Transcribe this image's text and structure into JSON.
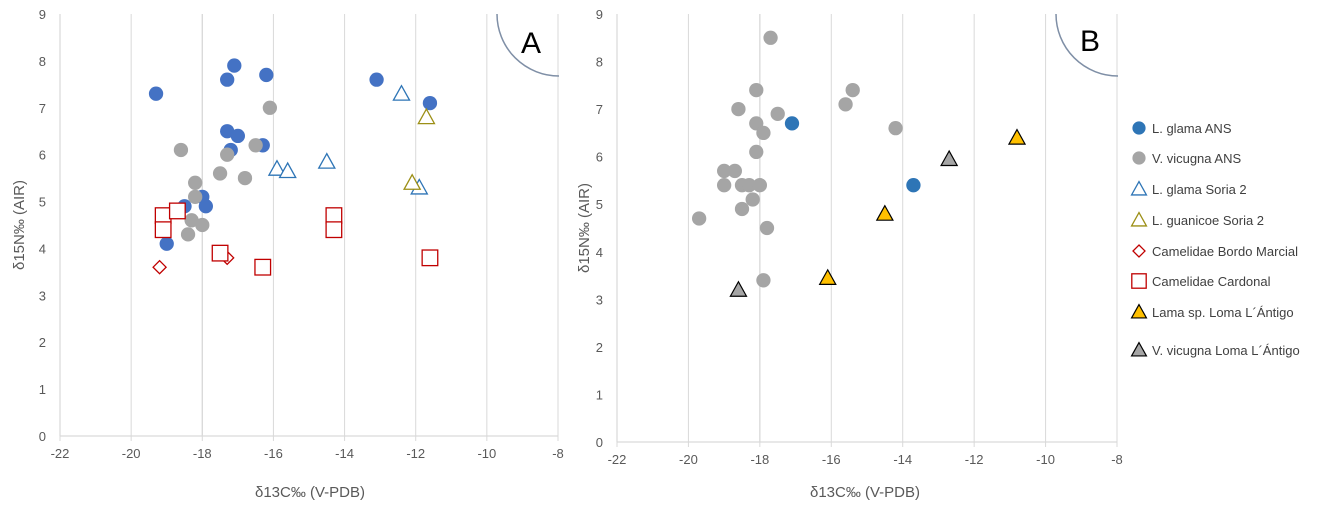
{
  "colors": {
    "ans_glama": "#4472C4",
    "vicugna": "#A5A5A5",
    "soria_glama": "#2E75B6",
    "soria_guanicoe": "#9C8F16",
    "bordo": "#C00000",
    "cardonal": "#C00000",
    "loma_lama": "#FFC000",
    "loma_vicugna": "#A5A5A5",
    "axis": "#D9D9D9",
    "tick": "#595959"
  },
  "chart_data": [
    {
      "panel": "A",
      "type": "scatter",
      "xlabel": "δ13C‰ (V-PDB)",
      "ylabel": "δ15N‰ (AIR)",
      "xlim": [
        -22,
        -8
      ],
      "ylim": [
        0,
        9
      ],
      "xticks": [
        -22,
        -20,
        -18,
        -16,
        -14,
        -12,
        -10,
        -8
      ],
      "xtick_labels": [
        "-22",
        "-20",
        "-18",
        "-16",
        "-14",
        "-12",
        "-10",
        "-8"
      ],
      "yticks": [
        0,
        1,
        2,
        3,
        4,
        5,
        6,
        7,
        8,
        9
      ],
      "ytick_labels": [
        "0",
        "1",
        "2",
        "3",
        "4",
        "5",
        "6",
        "7",
        "8",
        "9"
      ],
      "series": [
        {
          "name": "L. glama ANS",
          "marker": "circle-filled",
          "color": "#4472C4",
          "points": [
            [
              -19.3,
              7.3
            ],
            [
              -17.1,
              7.9
            ],
            [
              -17.3,
              7.6
            ],
            [
              -16.2,
              7.7
            ],
            [
              -13.1,
              7.6
            ],
            [
              -11.6,
              7.1
            ],
            [
              -17.3,
              6.5
            ],
            [
              -17.0,
              6.4
            ],
            [
              -16.3,
              6.2
            ],
            [
              -17.2,
              6.1
            ],
            [
              -18.0,
              5.1
            ],
            [
              -17.9,
              4.9
            ],
            [
              -18.5,
              4.9
            ],
            [
              -19.0,
              4.1
            ]
          ]
        },
        {
          "name": "V. vicugna ANS",
          "marker": "circle-filled",
          "color": "#A5A5A5",
          "points": [
            [
              -16.1,
              7.0
            ],
            [
              -18.6,
              6.1
            ],
            [
              -16.5,
              6.2
            ],
            [
              -17.3,
              6.0
            ],
            [
              -17.5,
              5.6
            ],
            [
              -16.8,
              5.5
            ],
            [
              -18.2,
              5.4
            ],
            [
              -18.2,
              5.1
            ],
            [
              -18.3,
              4.6
            ],
            [
              -18.0,
              4.5
            ],
            [
              -18.4,
              4.3
            ]
          ]
        },
        {
          "name": "L. glama Soria 2",
          "marker": "triangle-open",
          "color": "#2E75B6",
          "points": [
            [
              -12.4,
              7.3
            ],
            [
              -14.5,
              5.85
            ],
            [
              -15.9,
              5.7
            ],
            [
              -15.6,
              5.65
            ],
            [
              -11.9,
              5.3
            ]
          ]
        },
        {
          "name": "L. guanicoe Soria 2",
          "marker": "triangle-open",
          "color": "#9C8F16",
          "points": [
            [
              -11.7,
              6.8
            ],
            [
              -12.1,
              5.4
            ]
          ]
        },
        {
          "name": "Camelidae Bordo Marcial",
          "marker": "diamond-open",
          "color": "#C00000",
          "points": [
            [
              -19.2,
              3.6
            ],
            [
              -17.3,
              3.8
            ]
          ]
        },
        {
          "name": "Camelidae Cardonal",
          "marker": "square-open",
          "color": "#C00000",
          "points": [
            [
              -19.1,
              4.7
            ],
            [
              -18.7,
              4.8
            ],
            [
              -19.1,
              4.4
            ],
            [
              -14.3,
              4.7
            ],
            [
              -14.3,
              4.4
            ],
            [
              -17.5,
              3.9
            ],
            [
              -16.3,
              3.6
            ],
            [
              -11.6,
              3.8
            ]
          ]
        }
      ]
    },
    {
      "panel": "B",
      "type": "scatter",
      "xlabel": "δ13C‰ (V-PDB)",
      "ylabel": "δ15N‰ (AIR)",
      "xlim": [
        -22,
        -8
      ],
      "ylim": [
        0,
        9
      ],
      "xticks": [
        -22,
        -20,
        -18,
        -16,
        -14,
        -12,
        -10,
        -8
      ],
      "xtick_labels": [
        "-22",
        "-20",
        "-18",
        "-16",
        "-14",
        "-12",
        "-10",
        "-8"
      ],
      "yticks": [
        0,
        1,
        2,
        3,
        4,
        5,
        6,
        7,
        8,
        9
      ],
      "ytick_labels": [
        "0",
        "1",
        "2",
        "3",
        "4",
        "5",
        "6",
        "7",
        "8",
        "9"
      ],
      "series": [
        {
          "name": "L. glama ANS",
          "marker": "circle-filled",
          "color": "#2E75B6",
          "points": [
            [
              -17.1,
              6.7
            ],
            [
              -13.7,
              5.4
            ]
          ]
        },
        {
          "name": "V. vicugna ANS",
          "marker": "circle-filled",
          "color": "#A5A5A5",
          "points": [
            [
              -17.7,
              8.5
            ],
            [
              -15.4,
              7.4
            ],
            [
              -18.1,
              7.4
            ],
            [
              -15.6,
              7.1
            ],
            [
              -18.6,
              7.0
            ],
            [
              -17.5,
              6.9
            ],
            [
              -18.1,
              6.7
            ],
            [
              -14.2,
              6.6
            ],
            [
              -17.9,
              6.5
            ],
            [
              -18.1,
              6.1
            ],
            [
              -19.0,
              5.7
            ],
            [
              -18.7,
              5.7
            ],
            [
              -19.0,
              5.4
            ],
            [
              -18.5,
              5.4
            ],
            [
              -18.3,
              5.4
            ],
            [
              -18.0,
              5.4
            ],
            [
              -18.2,
              5.1
            ],
            [
              -18.5,
              4.9
            ],
            [
              -19.7,
              4.7
            ],
            [
              -17.8,
              4.5
            ],
            [
              -17.9,
              3.4
            ]
          ]
        },
        {
          "name": "Lama sp. Loma L´Ántigo",
          "marker": "triangle-filled",
          "color": "#FFC000",
          "points": [
            [
              -10.8,
              6.4
            ],
            [
              -14.5,
              4.8
            ],
            [
              -16.1,
              3.45
            ]
          ]
        },
        {
          "name": "V. vicugna Loma L´Ántigo",
          "marker": "triangle-filled",
          "color": "#A5A5A5",
          "points": [
            [
              -12.7,
              5.95
            ],
            [
              -18.6,
              3.2
            ]
          ]
        }
      ]
    }
  ],
  "legend": [
    {
      "label": "L. glama ANS",
      "marker": "circle-filled",
      "color": "#2E75B6"
    },
    {
      "label": "V. vicugna ANS",
      "marker": "circle-filled",
      "color": "#A5A5A5"
    },
    {
      "label": "L. glama Soria 2",
      "marker": "triangle-open",
      "color": "#2E75B6"
    },
    {
      "label": "L. guanicoe Soria 2",
      "marker": "triangle-open",
      "color": "#9C8F16"
    },
    {
      "label": "Camelidae Bordo Marcial",
      "marker": "diamond-open",
      "color": "#C00000"
    },
    {
      "label": "Camelidae Cardonal",
      "marker": "square-open",
      "color": "#C00000"
    },
    {
      "label": "Lama sp. Loma L´Ántigo",
      "marker": "triangle-filled",
      "color": "#FFC000"
    },
    {
      "label": "V. vicugna Loma L´Ántigo",
      "marker": "triangle-filled",
      "color": "#A5A5A5"
    }
  ]
}
